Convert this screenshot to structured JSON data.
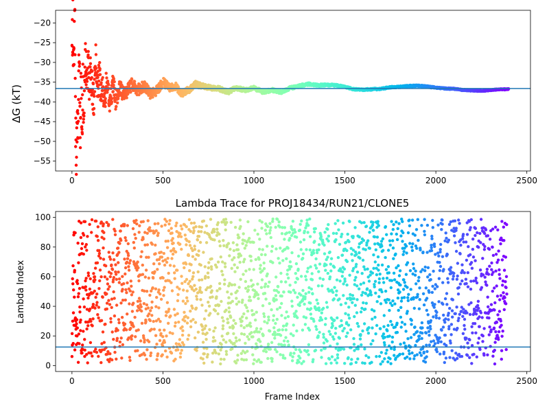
{
  "colors": {
    "refline": "#1f77b4",
    "colormap": "rainbow"
  },
  "chart_data": [
    {
      "type": "scatter",
      "title": "",
      "xlabel": "",
      "ylabel": "ΔG (kT)",
      "xlim": [
        -90,
        2520
      ],
      "ylim": [
        -57.5,
        -16.8
      ],
      "xticks": [
        0,
        500,
        1000,
        1500,
        2000,
        2500
      ],
      "yticks": [
        -55,
        -50,
        -45,
        -40,
        -35,
        -30,
        -25,
        -20
      ],
      "grid": false,
      "legend": "none",
      "reference_line_y": -36.6,
      "color_encoding": "rainbow colormap, red at frame 0 to violet at frame 2400",
      "series": {
        "x_range": [
          0,
          2400
        ],
        "approx_points": 2400,
        "trace": [
          [
            0,
            -24
          ],
          [
            5,
            -20
          ],
          [
            10,
            -30
          ],
          [
            15,
            -17
          ],
          [
            20,
            -45
          ],
          [
            25,
            -55.5
          ],
          [
            30,
            -42
          ],
          [
            35,
            -46
          ],
          [
            40,
            -25.5
          ],
          [
            45,
            -52
          ],
          [
            50,
            -32
          ],
          [
            55,
            -49
          ],
          [
            60,
            -36
          ],
          [
            65,
            -42
          ],
          [
            70,
            -34
          ],
          [
            75,
            -29
          ],
          [
            80,
            -33
          ],
          [
            85,
            -38
          ],
          [
            90,
            -31
          ],
          [
            95,
            -35
          ],
          [
            100,
            -32
          ],
          [
            110,
            -35
          ],
          [
            120,
            -40
          ],
          [
            130,
            -28.3
          ],
          [
            140,
            -38
          ],
          [
            150,
            -32
          ],
          [
            160,
            -39
          ],
          [
            170,
            -36
          ],
          [
            180,
            -40
          ],
          [
            190,
            -35
          ],
          [
            200,
            -38
          ],
          [
            210,
            -41
          ],
          [
            220,
            -37
          ],
          [
            230,
            -35
          ],
          [
            240,
            -40
          ],
          [
            260,
            -36
          ],
          [
            280,
            -38
          ],
          [
            300,
            -37.5
          ],
          [
            330,
            -35.5
          ],
          [
            360,
            -37
          ],
          [
            400,
            -36
          ],
          [
            430,
            -38
          ],
          [
            470,
            -37
          ],
          [
            500,
            -35
          ],
          [
            540,
            -36.5
          ],
          [
            570,
            -36
          ],
          [
            600,
            -38
          ],
          [
            640,
            -37
          ],
          [
            680,
            -35.5
          ],
          [
            720,
            -36
          ],
          [
            760,
            -36.5
          ],
          [
            800,
            -36.5
          ],
          [
            830,
            -37
          ],
          [
            860,
            -37.5
          ],
          [
            900,
            -36.5
          ],
          [
            950,
            -37
          ],
          [
            1000,
            -36.5
          ],
          [
            1050,
            -37.5
          ],
          [
            1100,
            -37
          ],
          [
            1150,
            -37.5
          ],
          [
            1200,
            -36.5
          ],
          [
            1250,
            -36
          ],
          [
            1300,
            -35.5
          ],
          [
            1350,
            -35.8
          ],
          [
            1400,
            -35.7
          ],
          [
            1450,
            -35.8
          ],
          [
            1500,
            -36.2
          ],
          [
            1550,
            -36.8
          ],
          [
            1600,
            -36.9
          ],
          [
            1650,
            -36.8
          ],
          [
            1700,
            -36.7
          ],
          [
            1750,
            -36.3
          ],
          [
            1800,
            -36.2
          ],
          [
            1850,
            -36
          ],
          [
            1900,
            -35.9
          ],
          [
            1950,
            -36.1
          ],
          [
            2000,
            -36.4
          ],
          [
            2050,
            -36.6
          ],
          [
            2100,
            -36.7
          ],
          [
            2150,
            -37
          ],
          [
            2200,
            -37.1
          ],
          [
            2250,
            -37.2
          ],
          [
            2300,
            -37
          ],
          [
            2350,
            -36.8
          ],
          [
            2400,
            -36.8
          ]
        ],
        "spread": [
          [
            0,
            7
          ],
          [
            100,
            5
          ],
          [
            200,
            3
          ],
          [
            300,
            1.6
          ],
          [
            450,
            1.2
          ],
          [
            600,
            0.9
          ],
          [
            800,
            0.6
          ],
          [
            1200,
            0.4
          ],
          [
            1500,
            0.25
          ],
          [
            2400,
            0.15
          ]
        ]
      }
    },
    {
      "type": "scatter",
      "title": "Lambda Trace for PROJ18434/RUN21/CLONE5",
      "xlabel": "Frame Index",
      "ylabel": "Lambda Index",
      "xlim": [
        -90,
        2520
      ],
      "ylim": [
        -4,
        104
      ],
      "xticks": [
        0,
        500,
        1000,
        1500,
        2000,
        2500
      ],
      "yticks": [
        0,
        20,
        40,
        60,
        80,
        100
      ],
      "grid": false,
      "legend": "none",
      "reference_line_y": 12.5,
      "color_encoding": "rainbow colormap, red at frame 0 to violet at frame 2400",
      "series": {
        "x_range": [
          0,
          2390
        ],
        "approx_points": 2390,
        "distribution": "roughly uniform over lambda index 1 to 99"
      }
    }
  ]
}
